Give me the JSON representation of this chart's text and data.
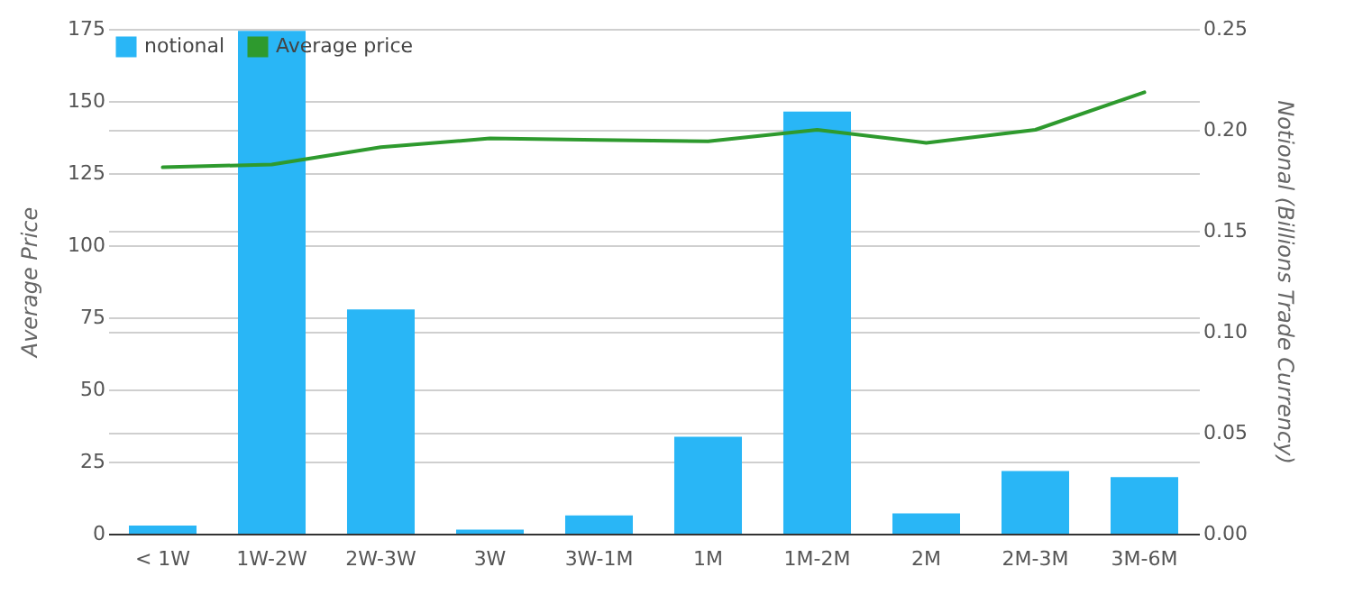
{
  "chart_data": {
    "type": "bar",
    "ylabel": "Average Price",
    "y2label": "Notional (Billions Trade Currency)",
    "categories": [
      "< 1W",
      "1W-2W",
      "2W-3W",
      "3W",
      "3W-1M",
      "1M",
      "1M-2M",
      "2M",
      "2M-3M",
      "3M-6M"
    ],
    "series": [
      {
        "name": "notional",
        "axis": "y2",
        "color": "#29b6f6",
        "values": [
          0.004,
          0.249,
          0.111,
          0.002,
          0.009,
          0.048,
          0.209,
          0.01,
          0.031,
          0.028
        ]
      },
      {
        "name": "Average price",
        "type": "line",
        "axis": "y",
        "color": "#2e9a2e",
        "values": [
          127,
          128,
          134,
          137,
          136.5,
          136,
          140,
          135.5,
          140,
          153
        ]
      }
    ],
    "ylim": [
      0,
      175
    ],
    "yticks": [
      0,
      25,
      50,
      75,
      100,
      125,
      150,
      175
    ],
    "y2lim": [
      0,
      0.25
    ],
    "y2ticks": [
      {
        "value": 0,
        "label": "0.00"
      },
      {
        "value": 0.05,
        "label": "0.05"
      },
      {
        "value": 0.1,
        "label": "0.10"
      },
      {
        "value": 0.15,
        "label": "0.15"
      },
      {
        "value": 0.2,
        "label": "0.20"
      },
      {
        "value": 0.25,
        "label": "0.25"
      }
    ],
    "grid": true,
    "legend": "top left",
    "marker": "none",
    "line_style": "solid"
  }
}
